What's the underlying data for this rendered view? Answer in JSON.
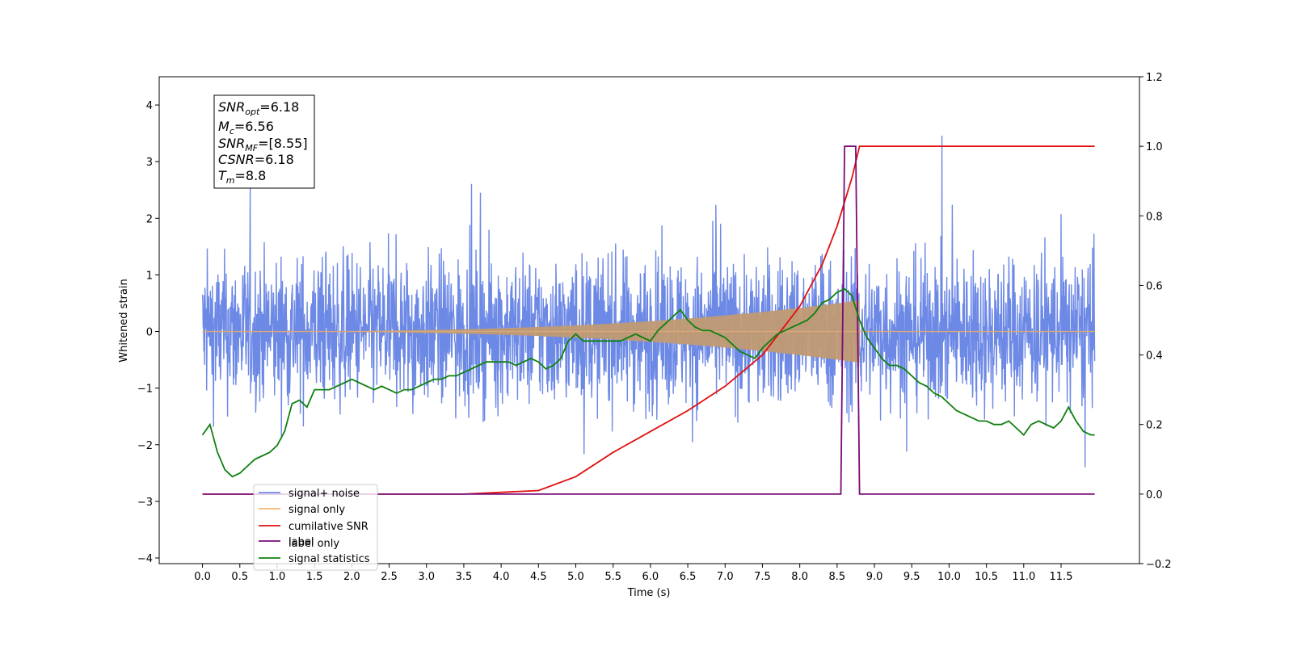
{
  "chart_data": {
    "type": "line",
    "title": "",
    "xlabel": "Time (s)",
    "ylabel": "Whitened strain",
    "xlim": [
      -0.58,
      12.55
    ],
    "ylim": [
      -4.1,
      4.5
    ],
    "y2lim": [
      -0.2,
      1.2
    ],
    "x_ticks": [
      "0.0",
      "0.5",
      "1.0",
      "1.5",
      "2.0",
      "2.5",
      "3.0",
      "3.5",
      "4.0",
      "4.5",
      "5.0",
      "5.5",
      "6.0",
      "6.5",
      "7.0",
      "7.5",
      "8.0",
      "8.5",
      "9.0",
      "9.5",
      "10.0",
      "10.5",
      "11.0",
      "11.5"
    ],
    "y_ticks": [
      "4",
      "3",
      "2",
      "1",
      "0",
      "−1",
      "−2",
      "−3",
      "−4"
    ],
    "y2_ticks": [
      "1.2",
      "1.0",
      "0.8",
      "0.6",
      "0.4",
      "0.2",
      "0.0",
      "−0.2"
    ],
    "grid": false,
    "legend_position": "lower-left",
    "info_box": {
      "snr_opt": {
        "var": "SNR",
        "sub": "opt",
        "value": "=6.18"
      },
      "mc": {
        "var": "M",
        "sub": "c",
        "value": "=6.56"
      },
      "snr_mf": {
        "var": "SNR",
        "sub": "MF",
        "value": "=[8.55]"
      },
      "csnr": {
        "var": "CSNR",
        "value": "=6.18"
      },
      "tm": {
        "var": "T",
        "sub": "m",
        "value": "=8.8"
      }
    },
    "series": [
      {
        "name": "signal+ noise",
        "color": "#6d89e6",
        "axis": "left",
        "noise_amplitude": 2.1
      },
      {
        "name": "signal only",
        "color": "#f5b76e",
        "axis": "left",
        "chirp_end": 8.8,
        "chirp_peak_amplitude": 0.55
      },
      {
        "name": "cumilative SNR",
        "color": "#e01010",
        "axis": "right",
        "x": [
          0,
          3.5,
          4.5,
          5.0,
          5.5,
          6.0,
          6.5,
          7.0,
          7.5,
          8.0,
          8.3,
          8.5,
          8.6,
          8.7,
          8.8,
          8.81,
          11.95
        ],
        "y": [
          0,
          0,
          0.01,
          0.05,
          0.12,
          0.18,
          0.24,
          0.31,
          0.4,
          0.54,
          0.66,
          0.77,
          0.84,
          0.91,
          1.0,
          1.0,
          1.0
        ]
      },
      {
        "name": "label only",
        "color": "#cccccc",
        "axis": "right",
        "hidden_in_plot": true
      },
      {
        "name": "label",
        "color": "#7a0a7a",
        "axis": "right",
        "x": [
          0,
          8.55,
          8.6,
          8.75,
          8.8,
          11.95
        ],
        "y": [
          0,
          0,
          1,
          1,
          0,
          0
        ]
      },
      {
        "name": "signal statistics",
        "color": "#108010",
        "axis": "right",
        "x": [
          0,
          0.1,
          0.2,
          0.3,
          0.4,
          0.5,
          0.6,
          0.7,
          0.8,
          0.9,
          1.0,
          1.1,
          1.2,
          1.3,
          1.4,
          1.5,
          1.6,
          1.7,
          1.8,
          1.9,
          2.0,
          2.1,
          2.2,
          2.3,
          2.4,
          2.5,
          2.6,
          2.7,
          2.8,
          2.9,
          3.0,
          3.1,
          3.2,
          3.3,
          3.4,
          3.5,
          3.6,
          3.7,
          3.8,
          3.9,
          4.0,
          4.1,
          4.2,
          4.3,
          4.4,
          4.5,
          4.6,
          4.7,
          4.8,
          4.9,
          5.0,
          5.1,
          5.2,
          5.3,
          5.4,
          5.5,
          5.6,
          5.7,
          5.8,
          5.9,
          6.0,
          6.1,
          6.2,
          6.3,
          6.4,
          6.5,
          6.6,
          6.7,
          6.8,
          6.9,
          7.0,
          7.1,
          7.2,
          7.3,
          7.4,
          7.5,
          7.6,
          7.7,
          7.8,
          7.9,
          8.0,
          8.1,
          8.2,
          8.3,
          8.4,
          8.5,
          8.6,
          8.7,
          8.8,
          8.9,
          9.0,
          9.1,
          9.2,
          9.3,
          9.4,
          9.5,
          9.6,
          9.7,
          9.8,
          9.9,
          10.0,
          10.1,
          10.2,
          10.3,
          10.4,
          10.5,
          10.6,
          10.7,
          10.8,
          10.9,
          11.0,
          11.1,
          11.2,
          11.3,
          11.4,
          11.5,
          11.6,
          11.7,
          11.8,
          11.9,
          11.95
        ],
        "y": [
          0.17,
          0.2,
          0.12,
          0.07,
          0.05,
          0.06,
          0.08,
          0.1,
          0.11,
          0.12,
          0.14,
          0.18,
          0.26,
          0.27,
          0.25,
          0.3,
          0.3,
          0.3,
          0.31,
          0.32,
          0.33,
          0.32,
          0.31,
          0.3,
          0.31,
          0.3,
          0.29,
          0.3,
          0.3,
          0.31,
          0.32,
          0.33,
          0.33,
          0.34,
          0.34,
          0.35,
          0.36,
          0.37,
          0.38,
          0.38,
          0.38,
          0.38,
          0.37,
          0.38,
          0.39,
          0.38,
          0.36,
          0.37,
          0.39,
          0.44,
          0.46,
          0.44,
          0.44,
          0.44,
          0.44,
          0.44,
          0.44,
          0.45,
          0.46,
          0.45,
          0.44,
          0.47,
          0.49,
          0.51,
          0.53,
          0.5,
          0.48,
          0.47,
          0.47,
          0.46,
          0.45,
          0.43,
          0.41,
          0.4,
          0.39,
          0.42,
          0.44,
          0.46,
          0.47,
          0.48,
          0.49,
          0.5,
          0.52,
          0.55,
          0.56,
          0.58,
          0.59,
          0.57,
          0.5,
          0.45,
          0.42,
          0.39,
          0.37,
          0.37,
          0.36,
          0.34,
          0.32,
          0.31,
          0.29,
          0.28,
          0.26,
          0.24,
          0.23,
          0.22,
          0.21,
          0.21,
          0.2,
          0.2,
          0.21,
          0.19,
          0.17,
          0.2,
          0.21,
          0.2,
          0.19,
          0.21,
          0.25,
          0.21,
          0.18,
          0.17,
          0.17
        ]
      }
    ]
  }
}
